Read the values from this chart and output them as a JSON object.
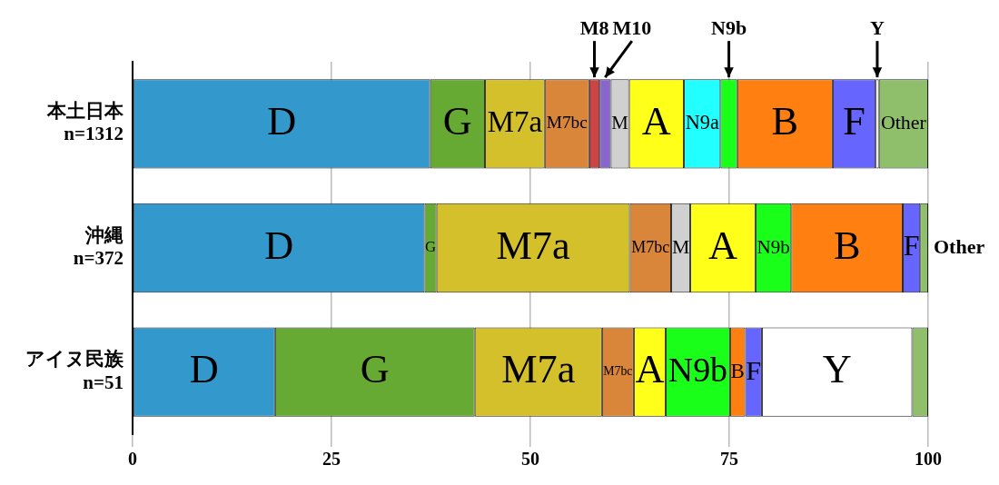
{
  "chart_data": {
    "type": "bar",
    "orientation": "horizontal",
    "stacked": true,
    "categories": [
      "本土日本\nn=1312",
      "沖縄\nn=372",
      "アイヌ民族\nn=51"
    ],
    "series": [
      {
        "name": "D",
        "color": "#3399cc",
        "values": [
          37.4,
          36.7,
          17.9
        ]
      },
      {
        "name": "G",
        "color": "#66aa33",
        "values": [
          6.9,
          1.5,
          25.1
        ]
      },
      {
        "name": "M7a",
        "color": "#d4c02a",
        "values": [
          7.5,
          24.3,
          16.0
        ]
      },
      {
        "name": "M7bc",
        "color": "#d9853a",
        "values": [
          5.6,
          5.2,
          4.0
        ]
      },
      {
        "name": "M8",
        "color": "#cc4444",
        "values": [
          1.3,
          null,
          null
        ]
      },
      {
        "name": "M10",
        "color": "#8866cc",
        "values": [
          1.4,
          null,
          null
        ]
      },
      {
        "name": "M",
        "color": "#d0d0d0",
        "values": [
          2.3,
          2.4,
          null
        ]
      },
      {
        "name": "A",
        "color": "#ffff1a",
        "values": [
          6.9,
          8.2,
          4.0
        ]
      },
      {
        "name": "N9a",
        "color": "#22ffff",
        "values": [
          4.6,
          null,
          null
        ]
      },
      {
        "name": "N9b",
        "color": "#1aff1a",
        "values": [
          2.1,
          4.5,
          8.1
        ]
      },
      {
        "name": "B",
        "color": "#ff8011",
        "values": [
          12.0,
          14.0,
          1.9
        ]
      },
      {
        "name": "F",
        "color": "#6666ff",
        "values": [
          5.4,
          2.2,
          2.1
        ]
      },
      {
        "name": "Y",
        "color": "#ffffff",
        "values": [
          0.4,
          null,
          18.9
        ]
      },
      {
        "name": "Other",
        "color": "#8fbf6a",
        "values": [
          6.2,
          1.0,
          2.0
        ]
      }
    ],
    "xlim": [
      0,
      100
    ],
    "xticks": [
      0,
      25,
      50,
      75,
      100
    ],
    "grid": "x",
    "legend": false
  }
}
